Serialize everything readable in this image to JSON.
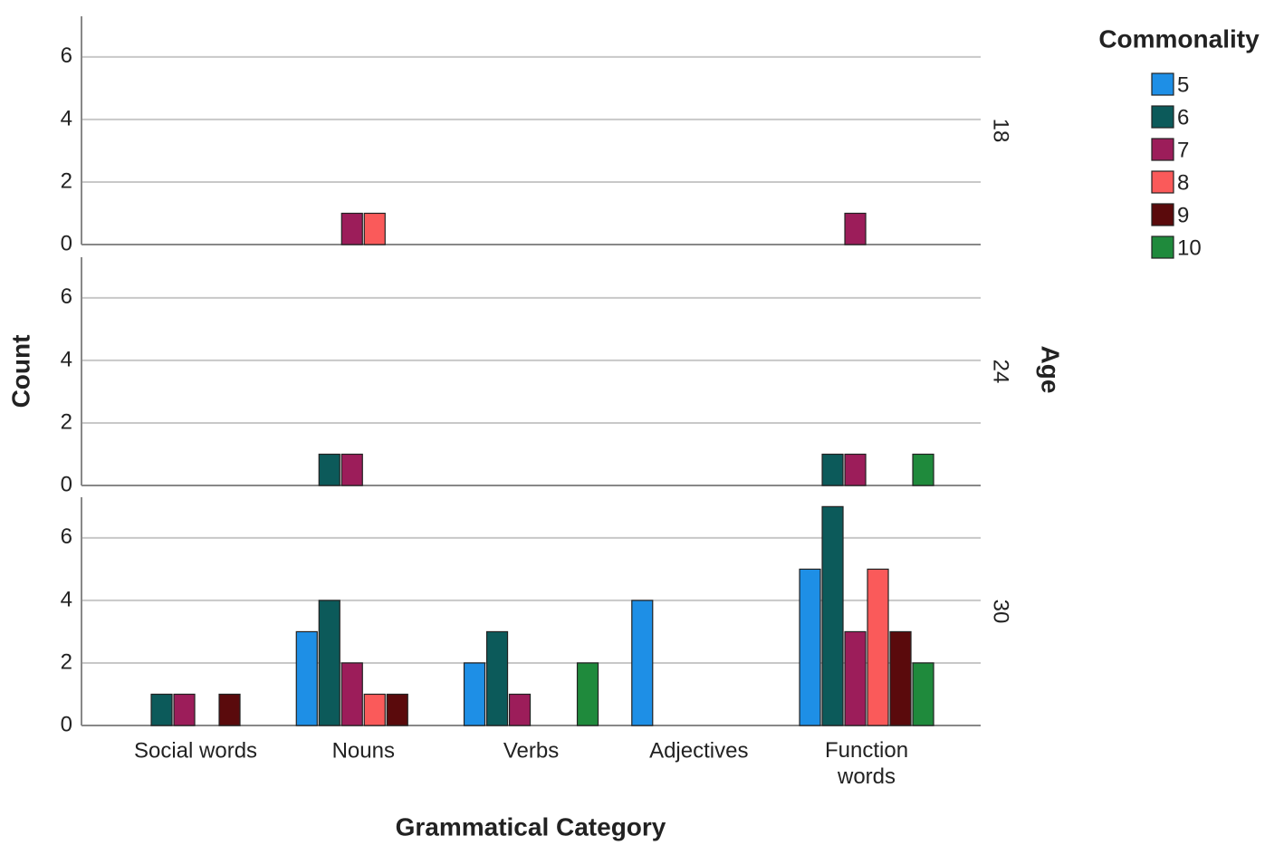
{
  "chart_data": {
    "type": "bar",
    "x_label": "Grammatical Category",
    "y_label": "Count",
    "facet_label": "Age",
    "legend_title": "Commonality",
    "categories": [
      "Social words",
      "Nouns",
      "Verbs",
      "Adjectives",
      "Function words"
    ],
    "ylim": [
      0,
      7.3
    ],
    "yticks": [
      0,
      2,
      4,
      6
    ],
    "grid": true,
    "legend_position": "top-right",
    "series": [
      {
        "name": "5",
        "color": "#1e8fe6"
      },
      {
        "name": "6",
        "color": "#0c5a5a"
      },
      {
        "name": "7",
        "color": "#9c1d5a"
      },
      {
        "name": "8",
        "color": "#fa5a5a"
      },
      {
        "name": "9",
        "color": "#5a0a0c"
      },
      {
        "name": "10",
        "color": "#1f8a3c"
      }
    ],
    "panels": [
      {
        "label": "18",
        "series": [
          {
            "values": [
              0,
              0,
              0,
              0,
              0
            ]
          },
          {
            "values": [
              0,
              0,
              0,
              0,
              0
            ]
          },
          {
            "values": [
              0,
              1,
              0,
              0,
              1
            ]
          },
          {
            "values": [
              0,
              1,
              0,
              0,
              0
            ]
          },
          {
            "values": [
              0,
              0,
              0,
              0,
              0
            ]
          },
          {
            "values": [
              0,
              0,
              0,
              0,
              0
            ]
          }
        ]
      },
      {
        "label": "24",
        "series": [
          {
            "values": [
              0,
              0,
              0,
              0,
              0
            ]
          },
          {
            "values": [
              0,
              1,
              0,
              0,
              1
            ]
          },
          {
            "values": [
              0,
              1,
              0,
              0,
              1
            ]
          },
          {
            "values": [
              0,
              0,
              0,
              0,
              0
            ]
          },
          {
            "values": [
              0,
              0,
              0,
              0,
              0
            ]
          },
          {
            "values": [
              0,
              0,
              0,
              0,
              1
            ]
          }
        ]
      },
      {
        "label": "30",
        "series": [
          {
            "values": [
              0,
              3,
              2,
              4,
              5
            ]
          },
          {
            "values": [
              1,
              4,
              3,
              0,
              7
            ]
          },
          {
            "values": [
              1,
              2,
              1,
              0,
              3
            ]
          },
          {
            "values": [
              0,
              1,
              0,
              0,
              5
            ]
          },
          {
            "values": [
              1,
              1,
              0,
              0,
              3
            ]
          },
          {
            "values": [
              0,
              0,
              2,
              0,
              2
            ]
          }
        ]
      }
    ]
  }
}
